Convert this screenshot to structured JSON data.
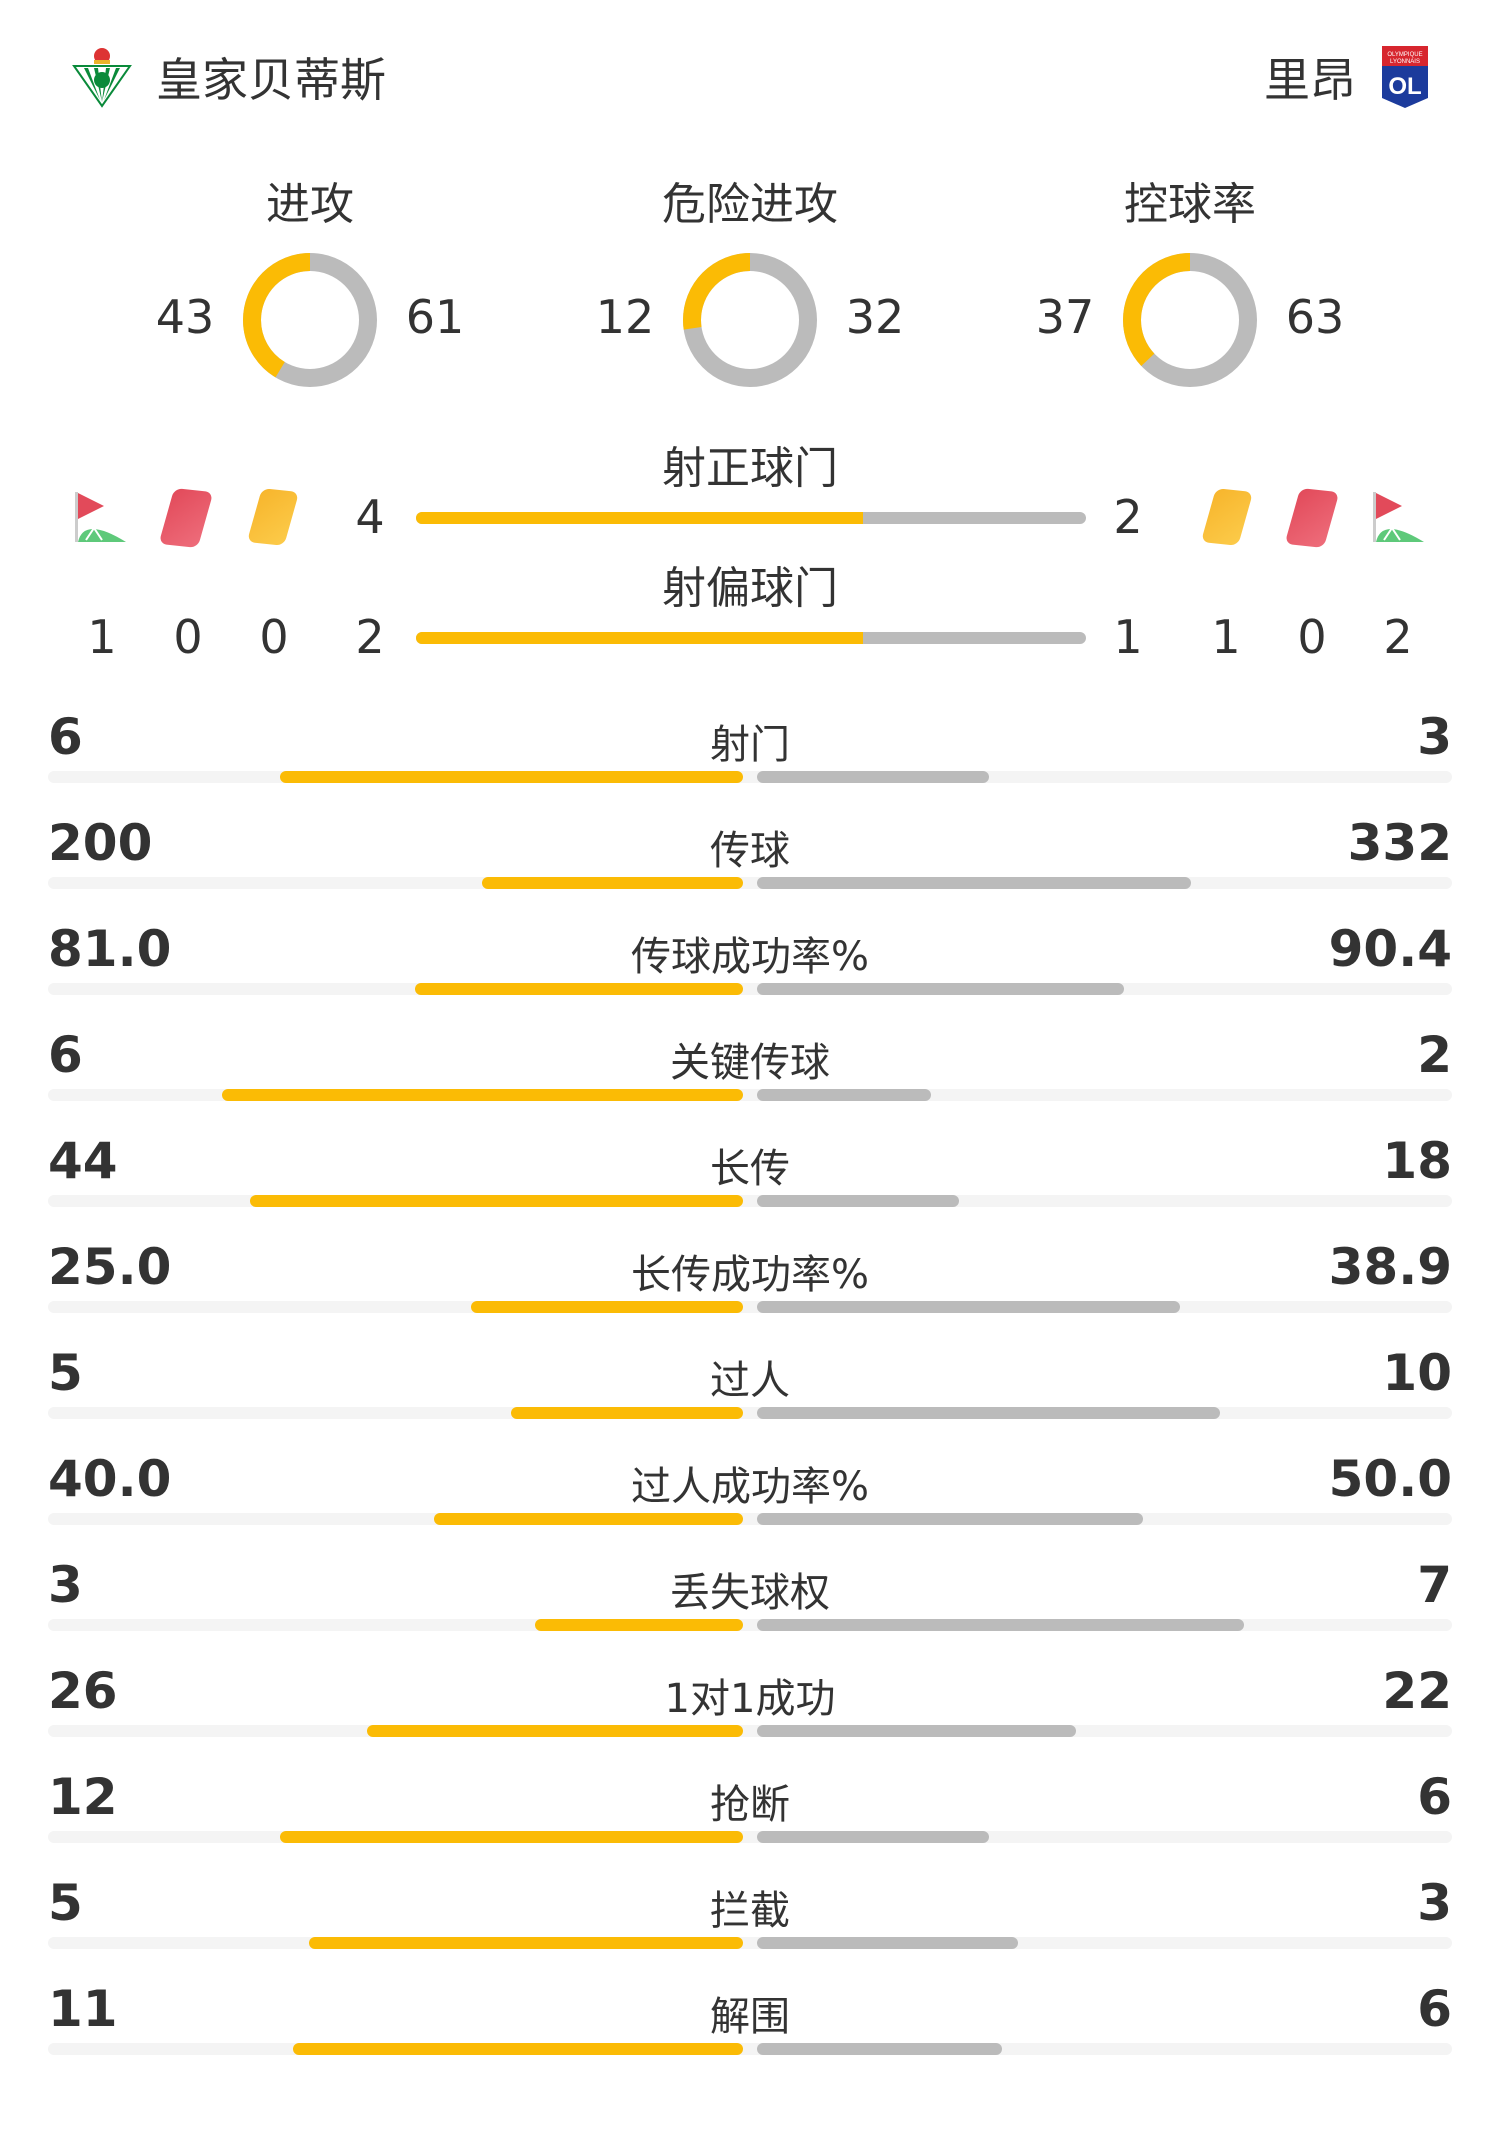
{
  "colors": {
    "home": "#fbbb05",
    "away": "#bbbbbb",
    "track": "#f4f4f4"
  },
  "home": {
    "name": "皇家贝蒂斯",
    "logo": "real-betis-crest"
  },
  "away": {
    "name": "里昂",
    "logo": "olympique-lyonnais-crest",
    "logo_text": "OLYMPIQUE LYONNAIS OL"
  },
  "donuts": [
    {
      "label": "进攻",
      "home": 43,
      "away": 61
    },
    {
      "label": "危险进攻",
      "home": 12,
      "away": 32
    },
    {
      "label": "控球率",
      "home": 37,
      "away": 63
    }
  ],
  "shots_on": {
    "label": "射正球门",
    "home": 4,
    "away": 2
  },
  "shots_off": {
    "label": "射偏球门",
    "home": 2,
    "away": 1
  },
  "events": {
    "home": {
      "corners": "1",
      "red_cards": "0",
      "yellow_cards": "0"
    },
    "away": {
      "corners": "2",
      "red_cards": "0",
      "yellow_cards": "1"
    }
  },
  "stats": [
    {
      "label": "射门",
      "home": "6",
      "away": "3"
    },
    {
      "label": "传球",
      "home": "200",
      "away": "332"
    },
    {
      "label": "传球成功率%",
      "home": "81.0",
      "away": "90.4"
    },
    {
      "label": "关键传球",
      "home": "6",
      "away": "2"
    },
    {
      "label": "长传",
      "home": "44",
      "away": "18"
    },
    {
      "label": "长传成功率%",
      "home": "25.0",
      "away": "38.9"
    },
    {
      "label": "过人",
      "home": "5",
      "away": "10"
    },
    {
      "label": "过人成功率%",
      "home": "40.0",
      "away": "50.0"
    },
    {
      "label": "丢失球权",
      "home": "3",
      "away": "7"
    },
    {
      "label": "1对1成功",
      "home": "26",
      "away": "22"
    },
    {
      "label": "抢断",
      "home": "12",
      "away": "6"
    },
    {
      "label": "拦截",
      "home": "5",
      "away": "3"
    },
    {
      "label": "解围",
      "home": "11",
      "away": "6"
    }
  ]
}
